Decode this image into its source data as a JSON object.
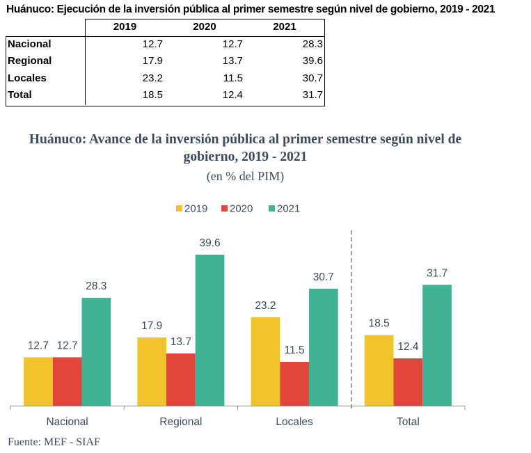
{
  "table": {
    "title": "Huánuco: Ejecución de la inversión pública al primer semestre según nivel de gobierno, 2019 - 2021",
    "columns": [
      "2019",
      "2020",
      "2021"
    ],
    "rows": [
      {
        "label": "Nacional",
        "values": [
          "12.7",
          "12.7",
          "28.3"
        ]
      },
      {
        "label": "Regional",
        "values": [
          "17.9",
          "13.7",
          "39.6"
        ]
      },
      {
        "label": "Locales",
        "values": [
          "23.2",
          "11.5",
          "30.7"
        ]
      },
      {
        "label": "Total",
        "values": [
          "18.5",
          "12.4",
          "31.7"
        ]
      }
    ]
  },
  "chart_data": {
    "type": "bar",
    "title": "Huánuco: Avance de la inversión pública al primer semestre según nivel de gobierno, 2019 - 2021",
    "title_line1": "Huánuco: Avance de la inversión pública al primer semestre según nivel de",
    "title_line2": "gobierno, 2019 - 2021",
    "subtitle": "(en % del PIM)",
    "xlabel": "",
    "ylabel": "",
    "categories": [
      "Nacional",
      "Regional",
      "Locales",
      "Total"
    ],
    "series": [
      {
        "name": "2019",
        "color": "#F2C42C",
        "values": [
          12.7,
          17.9,
          23.2,
          18.5
        ]
      },
      {
        "name": "2020",
        "color": "#E2453B",
        "values": [
          12.7,
          13.7,
          11.5,
          12.4
        ]
      },
      {
        "name": "2021",
        "color": "#41B395",
        "values": [
          28.3,
          39.6,
          30.7,
          31.7
        ]
      }
    ],
    "data_labels": true,
    "y_axis_visible": false,
    "ylim": [
      0,
      45
    ],
    "grid": false,
    "legend": "top-center",
    "separator": "dashed line between Locales and Total"
  },
  "source": "Fuente: MEF - SIAF"
}
